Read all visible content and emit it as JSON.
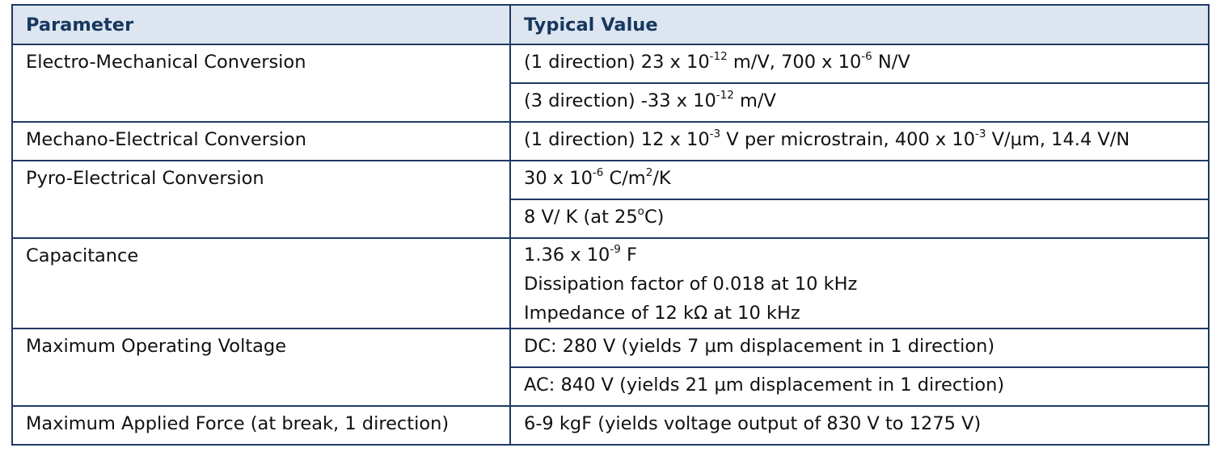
{
  "table": {
    "headers": {
      "parameter": "Parameter",
      "value": "Typical Value"
    },
    "rows": {
      "electro": {
        "param": "Electro-Mechanical Conversion",
        "v1": {
          "a": "(1 direction) 23 x 10",
          "a_sup": "-12",
          "b": " m/V, 700 x 10",
          "b_sup": "-6",
          "c": " N/V"
        },
        "v2": {
          "a": "(3 direction) -33 x 10",
          "a_sup": "-12",
          "b": " m/V"
        }
      },
      "mechano": {
        "param": "Mechano-Electrical Conversion",
        "v1": {
          "a": "(1 direction) 12 x 10",
          "a_sup": "-3",
          "b": " V per microstrain, 400 x 10",
          "b_sup": "-3",
          "c": " V/µm,  14.4 V/N"
        }
      },
      "pyro": {
        "param": "Pyro-Electrical Conversion",
        "v1": {
          "a": "30 x 10",
          "a_sup": "-6",
          "b": " C/m",
          "b_sup": "2",
          "c": "/K"
        },
        "v2": {
          "a": "8 V/ K (at 25",
          "a_sup": "o",
          "b": "C)"
        }
      },
      "capacitance": {
        "param": "Capacitance",
        "v1": {
          "a": "1.36 x 10",
          "a_sup": "-9",
          "b": " F"
        },
        "v2": "Dissipation factor of 0.018 at 10 kHz",
        "v3": "Impedance of 12 kΩ at 10 kHz"
      },
      "voltage": {
        "param": "Maximum Operating Voltage",
        "v1": "DC: 280 V (yields 7 µm displacement in 1 direction)",
        "v2": "AC: 840 V (yields 21 µm displacement in 1 direction)"
      },
      "force": {
        "param": "Maximum Applied Force (at break, 1 direction)",
        "v1": "6-9 kgF (yields voltage output of 830 V to 1275 V)"
      }
    }
  }
}
